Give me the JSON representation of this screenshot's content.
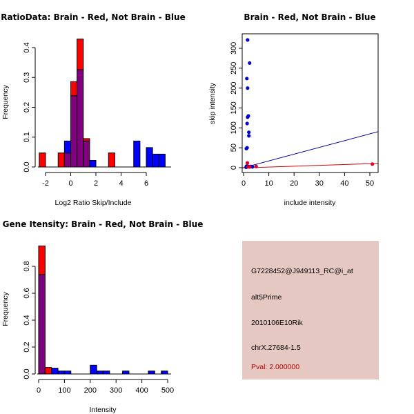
{
  "colors": {
    "brain": "#ff0000",
    "not_brain": "#0000ff",
    "overlap": "#800080",
    "panel_bg": "#e6c8c2",
    "pval_text": "#b00000"
  },
  "chart_data": [
    {
      "id": "ratio-histogram",
      "type": "bar",
      "title": "RatioData: Brain - Red, Not Brain - Blue",
      "xlabel": "Log2 Ratio Skip/Include",
      "ylabel": "Frequency",
      "xlim": [
        -2.5,
        7.5
      ],
      "ylim": [
        0,
        0.43
      ],
      "xticks": [
        -2,
        0,
        2,
        4,
        6
      ],
      "yticks": [
        0.0,
        0.1,
        0.2,
        0.3,
        0.4
      ],
      "ytick_labels": [
        "0.0",
        "0.1",
        "0.2",
        "0.3",
        "0.4"
      ],
      "bin_width": 0.5,
      "series": [
        {
          "name": "Brain",
          "color": "red",
          "bins": [
            {
              "x0": -2.5,
              "value": 0.047
            },
            {
              "x0": -1.0,
              "value": 0.047
            },
            {
              "x0": -0.5,
              "value": 0.047
            },
            {
              "x0": 0.0,
              "value": 0.286
            },
            {
              "x0": 0.5,
              "value": 0.429
            },
            {
              "x0": 1.0,
              "value": 0.095
            },
            {
              "x0": 3.0,
              "value": 0.047
            }
          ]
        },
        {
          "name": "Not Brain",
          "color": "blue",
          "bins": [
            {
              "x0": -0.5,
              "value": 0.087
            },
            {
              "x0": 0.0,
              "value": 0.239
            },
            {
              "x0": 0.5,
              "value": 0.326
            },
            {
              "x0": 1.0,
              "value": 0.087
            },
            {
              "x0": 1.5,
              "value": 0.022
            },
            {
              "x0": 5.0,
              "value": 0.087
            },
            {
              "x0": 6.0,
              "value": 0.065
            },
            {
              "x0": 6.5,
              "value": 0.043
            },
            {
              "x0": 7.0,
              "value": 0.043
            }
          ]
        }
      ]
    },
    {
      "id": "intensity-scatter",
      "type": "scatter",
      "title": "Brain - Red, Not Brain - Blue",
      "xlabel": "include intensity",
      "ylabel": "skip intensity",
      "xlim": [
        -2,
        53
      ],
      "ylim": [
        -12,
        335
      ],
      "xticks": [
        0,
        10,
        20,
        30,
        40,
        50
      ],
      "yticks": [
        0,
        50,
        100,
        150,
        200,
        250,
        300
      ],
      "series": [
        {
          "name": "Not Brain",
          "color": "blue",
          "points": [
            [
              1.6,
              321
            ],
            [
              2.4,
              263
            ],
            [
              1.3,
              224
            ],
            [
              1.6,
              200
            ],
            [
              1.9,
              130
            ],
            [
              1.6,
              127
            ],
            [
              1.4,
              111
            ],
            [
              2.1,
              89
            ],
            [
              2.1,
              80
            ],
            [
              1.4,
              50
            ],
            [
              1.1,
              48
            ],
            [
              1.2,
              4
            ],
            [
              1.6,
              3
            ],
            [
              2.0,
              3
            ],
            [
              2.5,
              2
            ],
            [
              3.0,
              3
            ],
            [
              3.5,
              2
            ],
            [
              1.0,
              1
            ]
          ],
          "fit_line": {
            "slope": 1.7,
            "intercept": 0
          }
        },
        {
          "name": "Brain",
          "color": "red",
          "points": [
            [
              1.5,
              12
            ],
            [
              5.0,
              3
            ],
            [
              51,
              9
            ],
            [
              1.8,
              2
            ],
            [
              2.4,
              2
            ]
          ],
          "fit_line": {
            "slope": 0.21,
            "intercept": -0.5
          }
        }
      ]
    },
    {
      "id": "gene-intensity-histogram",
      "type": "bar",
      "title": "Gene Itensity: Brain - Red, Not Brain - Blue",
      "xlabel": "Intensity",
      "ylabel": "Frequency",
      "xlim": [
        0,
        512
      ],
      "ylim": [
        0,
        0.96
      ],
      "xticks": [
        0,
        100,
        200,
        300,
        400,
        500
      ],
      "yticks": [
        0.0,
        0.2,
        0.4,
        0.6,
        0.8
      ],
      "ytick_labels": [
        "0.0",
        "0.2",
        "0.4",
        "0.6",
        "0.8"
      ],
      "bin_width": 25,
      "series": [
        {
          "name": "Brain",
          "color": "red",
          "bins": [
            {
              "x0": 0,
              "value": 0.952
            },
            {
              "x0": 25,
              "value": 0.048
            }
          ]
        },
        {
          "name": "Not Brain",
          "color": "blue",
          "bins": [
            {
              "x0": 0,
              "value": 0.739
            },
            {
              "x0": 50,
              "value": 0.043
            },
            {
              "x0": 75,
              "value": 0.022
            },
            {
              "x0": 100,
              "value": 0.022
            },
            {
              "x0": 200,
              "value": 0.065
            },
            {
              "x0": 225,
              "value": 0.022
            },
            {
              "x0": 250,
              "value": 0.022
            },
            {
              "x0": 325,
              "value": 0.022
            },
            {
              "x0": 425,
              "value": 0.022
            },
            {
              "x0": 475,
              "value": 0.022
            }
          ]
        }
      ]
    }
  ],
  "info_panel": {
    "probe_id": "G7228452@J949113_RC@i_at",
    "event_type": "alt5Prime",
    "gene_name": "2010106E10Rik",
    "location": "chrX.27684-1.5",
    "pval": "Pval: 2.000000"
  }
}
